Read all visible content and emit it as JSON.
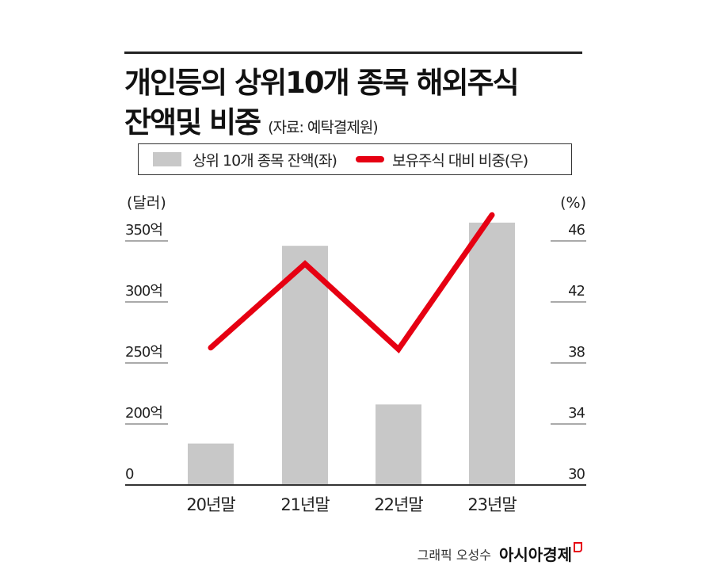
{
  "title_line1": "개인등의 상위10개 종목 해외주식",
  "title_line2": "잔액및 비중",
  "source": "(자료: 예탁결제원)",
  "credit": "그래픽 오성수",
  "brand": "아시아경제",
  "colors": {
    "bar": "#c8c8c8",
    "line": "#e60012"
  },
  "chart_data": {
    "type": "bar+line",
    "categories": [
      "20년말",
      "21년말",
      "22년말",
      "23년말"
    ],
    "series": [
      {
        "name": "상위 10개 종목 잔액(좌)",
        "type": "bar",
        "axis": "left",
        "values": [
          184,
          346,
          216,
          365
        ]
      },
      {
        "name": "보유주식 대비 비중(우)",
        "type": "line",
        "axis": "right",
        "values": [
          39.0,
          44.5,
          38.9,
          47.7
        ]
      }
    ],
    "left_axis": {
      "label": "(달러)",
      "ticks": [
        "0",
        "200억",
        "250억",
        "300억",
        "350억"
      ],
      "tick_values": [
        0,
        200,
        250,
        300,
        350
      ],
      "broken": true
    },
    "right_axis": {
      "label": "(%)",
      "ticks": [
        "30",
        "34",
        "38",
        "42",
        "46"
      ],
      "tick_values": [
        30,
        34,
        38,
        42,
        46
      ]
    }
  }
}
